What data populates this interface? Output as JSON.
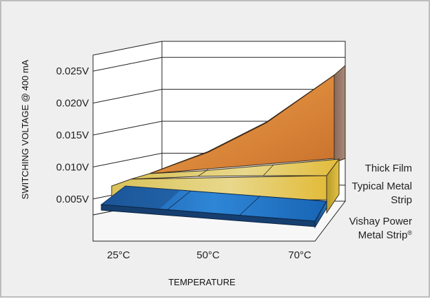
{
  "chart_data": {
    "type": "area",
    "projection": "3d-stacked-ribbons",
    "xlabel": "TEMPERATURE",
    "ylabel": "SWITCHING VOLTAGE @ 400 mA",
    "categories": [
      "25°C",
      "50°C",
      "70°C"
    ],
    "x": [
      25,
      50,
      70
    ],
    "yticks": [
      "0.005V",
      "0.010V",
      "0.015V",
      "0.020V",
      "0.025V"
    ],
    "ylim": [
      0.0025,
      0.0275
    ],
    "grid": true,
    "series": [
      {
        "name": "Vishay Power Metal Strip",
        "name_suffix": "®",
        "values": [
          0.002,
          0.002,
          0.002
        ],
        "color": "#1f78c8"
      },
      {
        "name": "Typical Metal Strip",
        "values": [
          0.007,
          0.007,
          0.007
        ],
        "color": "#e6c64a"
      },
      {
        "name": "Thick Film",
        "values": [
          0.006,
          0.014,
          0.025
        ],
        "color": "#d47a2b"
      }
    ]
  }
}
